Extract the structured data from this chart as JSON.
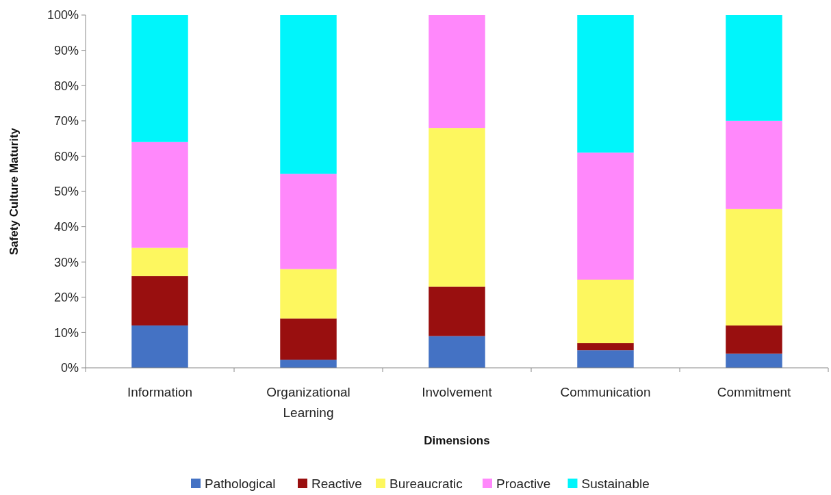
{
  "chart_data": {
    "type": "bar",
    "stacked": true,
    "xlabel": "Dimensions",
    "ylabel": "Safety Culture Maturity",
    "categories": [
      "Information",
      "Organizational Learning",
      "Involvement",
      "Communication",
      "Commitment"
    ],
    "series": [
      {
        "name": "Pathological",
        "color": "#4472c4",
        "values": [
          12,
          2.3,
          9,
          5,
          4
        ]
      },
      {
        "name": "Reactive",
        "color": "#990f0f",
        "values": [
          14,
          11.7,
          14,
          2,
          8
        ]
      },
      {
        "name": "Bureaucratic",
        "color": "#fdf75f",
        "values": [
          8,
          14,
          45,
          18,
          33
        ]
      },
      {
        "name": "Proactive",
        "color": "#ff88fb",
        "values": [
          30,
          27,
          32,
          36,
          25
        ]
      },
      {
        "name": "Sustainable",
        "color": "#00f5fb",
        "values": [
          36,
          45,
          0,
          39,
          30
        ]
      }
    ],
    "ylim": [
      0,
      100
    ],
    "yticks": [
      {
        "value": 0,
        "label": "0%"
      },
      {
        "value": 10,
        "label": "10%"
      },
      {
        "value": 20,
        "label": "20%"
      },
      {
        "value": 30,
        "label": "30%"
      },
      {
        "value": 40,
        "label": "40%"
      },
      {
        "value": 50,
        "label": "50%"
      },
      {
        "value": 60,
        "label": "60%"
      },
      {
        "value": 70,
        "label": "70%"
      },
      {
        "value": 80,
        "label": "80%"
      },
      {
        "value": 90,
        "label": "90%"
      },
      {
        "value": 100,
        "label": "100%"
      }
    ],
    "grid": false,
    "legend": "bottom"
  }
}
